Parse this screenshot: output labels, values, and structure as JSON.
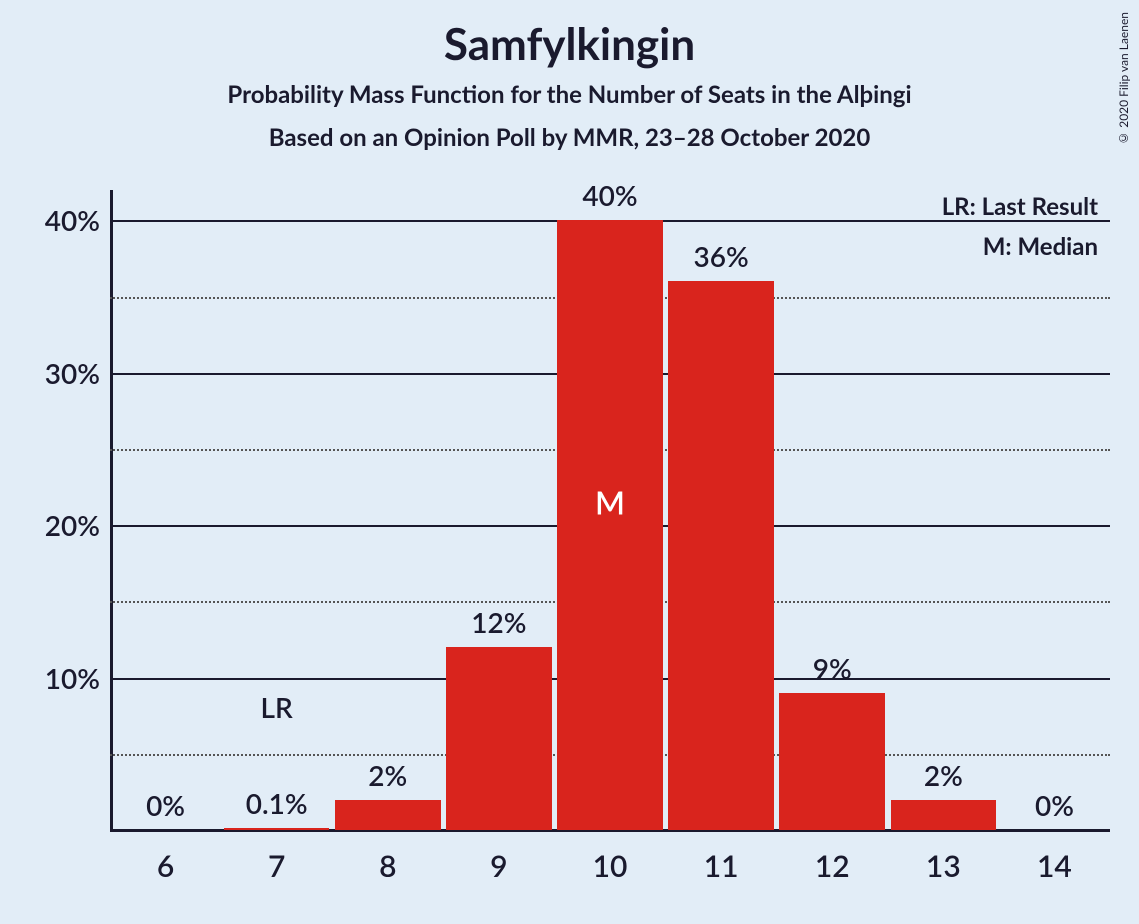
{
  "copyright": "© 2020 Filip van Laenen",
  "title": "Samfylkingin",
  "subtitle": "Probability Mass Function for the Number of Seats in the Alþingi",
  "subtitle2": "Based on an Opinion Poll by MMR, 23–28 October 2020",
  "legend": {
    "lr": "LR: Last Result",
    "m": "M: Median"
  },
  "chart": {
    "type": "bar",
    "background_color": "#e2edf7",
    "bar_color": "#d9241d",
    "text_color": "#1a1a2e",
    "median_marker_color": "#ffffff",
    "y_axis": {
      "min": 0,
      "max": 42,
      "major_ticks": [
        10,
        20,
        30,
        40
      ],
      "minor_ticks": [
        5,
        15,
        25,
        35
      ],
      "tick_labels": [
        "10%",
        "20%",
        "30%",
        "40%"
      ]
    },
    "x_categories": [
      "6",
      "7",
      "8",
      "9",
      "10",
      "11",
      "12",
      "13",
      "14"
    ],
    "values": [
      0,
      0.1,
      2,
      12,
      40,
      36,
      9,
      2,
      0
    ],
    "value_labels": [
      "0%",
      "0.1%",
      "2%",
      "12%",
      "40%",
      "36%",
      "9%",
      "2%",
      "0%"
    ],
    "annotations": [
      {
        "index": 1,
        "text": "LR",
        "offset_above_pct": 4
      }
    ],
    "median_index": 4,
    "median_text": "M",
    "bar_width_ratio": 0.95,
    "title_fontsize": 44,
    "subtitle_fontsize": 24,
    "axis_label_fontsize": 28,
    "x_tick_fontsize": 30
  }
}
